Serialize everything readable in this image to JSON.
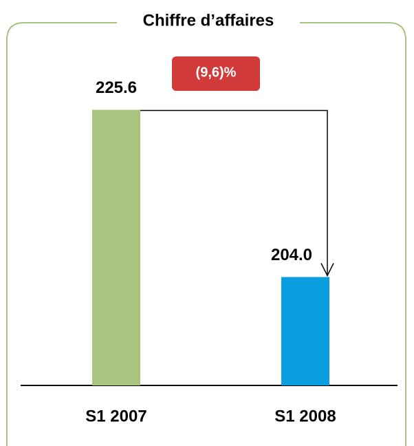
{
  "chart_data": {
    "type": "bar",
    "title": "Chiffre d’affaires",
    "categories": [
      "S1 2007",
      "S1 2008"
    ],
    "values": [
      225.6,
      204.0
    ],
    "value_labels": [
      "225.6",
      "204.0"
    ],
    "colors": [
      "#a9c47f",
      "#0a9ee0"
    ],
    "ylim": [
      190,
      230
    ],
    "annotation": "(9,6)%",
    "annotation_color": "#d13a3a"
  }
}
